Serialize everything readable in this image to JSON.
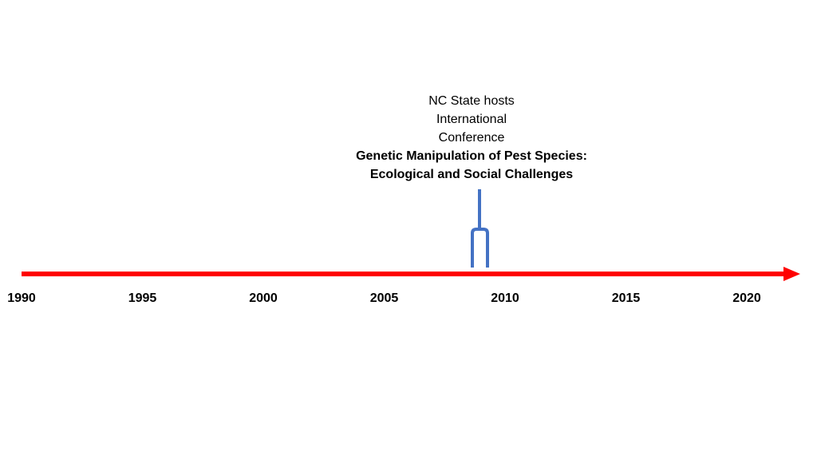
{
  "timeline": {
    "years": [
      "1990",
      "1995",
      "2000",
      "2005",
      "2010",
      "2015",
      "2020"
    ]
  },
  "event": {
    "lines": [
      "NC State hosts",
      "International",
      "Conference"
    ],
    "title_lines": [
      "Genetic Manipulation of Pest Species:",
      "Ecological and Social Challenges"
    ]
  }
}
